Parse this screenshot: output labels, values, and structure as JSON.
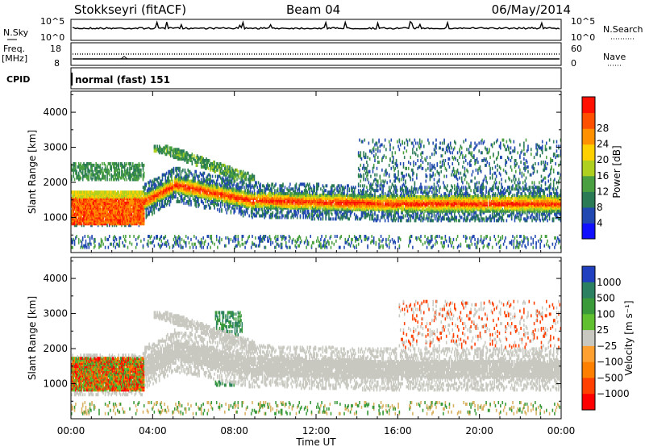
{
  "header": {
    "title": "Stokkseyri (fitACF)",
    "beam": "Beam 04",
    "date": "06/May/2014"
  },
  "noise_panel": {
    "left_label": "N.Sky",
    "right_label": "N.Search",
    "left_ticks": [
      "10^5",
      "10^0"
    ],
    "right_ticks": [
      "10^5",
      "10^0"
    ]
  },
  "freq_panel": {
    "left_label_1": "Freq.",
    "left_label_2": "[MHz]",
    "left_ticks": [
      "18",
      "8"
    ],
    "right_label": "Nave",
    "right_ticks": [
      "60",
      "0"
    ]
  },
  "cpid_panel": {
    "label": "CPID",
    "mode": "normal (fast) 151"
  },
  "x_axis": {
    "label": "Time UT",
    "ticks": [
      "00:00",
      "04:00",
      "08:00",
      "12:00",
      "16:00",
      "20:00",
      "00:00"
    ]
  },
  "chart_data": [
    {
      "type": "heatmap",
      "panel": "power",
      "xlabel": "Time UT",
      "ylabel": "Slant Range [km]",
      "yticks": [
        1000,
        2000,
        3000,
        4000
      ],
      "ylim": [
        0,
        4600
      ],
      "xlim_hours": [
        0,
        24
      ],
      "colorbar": {
        "label": "Power [dB]",
        "ticks": [
          "4",
          "8",
          "12",
          "16",
          "20",
          "24",
          "28"
        ],
        "range": [
          0,
          30
        ],
        "colors": [
          "#1010ff",
          "#2048b0",
          "#2a7a55",
          "#4aa040",
          "#b0d020",
          "#ffd000",
          "#ff9000",
          "#ff5000",
          "#ff1000"
        ]
      }
    },
    {
      "type": "heatmap",
      "panel": "velocity",
      "xlabel": "Time UT",
      "ylabel": "Slant Range [km]",
      "yticks": [
        1000,
        2000,
        3000,
        4000
      ],
      "ylim": [
        0,
        4600
      ],
      "xlim_hours": [
        0,
        24
      ],
      "colorbar": {
        "label": "Velocity [m s⁻¹]",
        "ticks": [
          "1000",
          "500",
          "100",
          "25",
          "−25",
          "−100",
          "−500",
          "−1000"
        ],
        "colors": [
          "#2040c0",
          "#2a8060",
          "#3a9a3a",
          "#60c030",
          "#c8c8c0",
          "#ffa030",
          "#ff8000",
          "#ff4000",
          "#ff0000"
        ]
      }
    }
  ]
}
